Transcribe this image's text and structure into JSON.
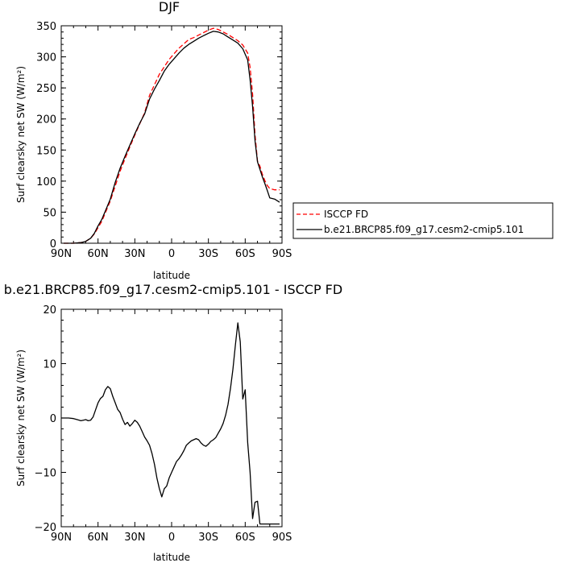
{
  "chart_data": [
    {
      "type": "line",
      "title": "DJF",
      "xlabel": "latitude",
      "ylabel": "Surf clearsky net SW (W/m²)",
      "xlim": [
        90,
        -90
      ],
      "ylim": [
        0,
        350
      ],
      "x_tick_labels": [
        "90N",
        "60N",
        "30N",
        "0",
        "30S",
        "60S",
        "90S"
      ],
      "x_tick_values": [
        90,
        60,
        30,
        0,
        -30,
        -60,
        -90
      ],
      "y_ticks": [
        0,
        50,
        100,
        150,
        200,
        250,
        300,
        350
      ],
      "legend_position": "right",
      "series": [
        {
          "name": "ISCCP FD",
          "style": "dashed",
          "color": "#ff0000",
          "x": [
            88,
            80,
            74,
            70,
            66,
            63,
            60,
            57,
            54,
            50,
            46,
            42,
            38,
            34,
            30,
            26,
            22,
            18,
            14,
            10,
            6,
            2,
            -2,
            -6,
            -10,
            -14,
            -18,
            -22,
            -26,
            -30,
            -34,
            -38,
            -42,
            -46,
            -50,
            -54,
            -58,
            -62,
            -64,
            -66,
            -68,
            -70,
            -72,
            -74,
            -76,
            -78,
            -80,
            -84,
            -88
          ],
          "y": [
            0,
            0,
            1,
            3,
            8,
            15,
            25,
            35,
            49,
            68,
            92,
            116,
            136,
            155,
            174,
            192,
            210,
            238,
            255,
            272,
            284,
            296,
            305,
            314,
            321,
            328,
            331,
            335,
            339,
            343,
            346,
            344,
            340,
            336,
            331,
            326,
            319,
            306,
            283,
            240,
            175,
            132,
            124,
            111,
            101,
            93,
            88,
            86,
            86
          ]
        },
        {
          "name": "b.e21.BRCP85.f09_g17.cesm2-cmip5.101",
          "style": "solid",
          "color": "#000000",
          "x": [
            88,
            80,
            74,
            70,
            66,
            63,
            60,
            57,
            54,
            50,
            46,
            42,
            38,
            34,
            30,
            26,
            22,
            18,
            14,
            10,
            6,
            2,
            -2,
            -6,
            -10,
            -14,
            -18,
            -22,
            -26,
            -30,
            -34,
            -38,
            -42,
            -46,
            -50,
            -54,
            -58,
            -62,
            -64,
            -66,
            -68,
            -70,
            -72,
            -74,
            -76,
            -78,
            -80,
            -84,
            -88
          ],
          "y": [
            0,
            0,
            1,
            3,
            8,
            16,
            28,
            38,
            52,
            71,
            98,
            121,
            140,
            158,
            176,
            193,
            208,
            232,
            248,
            262,
            277,
            288,
            297,
            306,
            314,
            320,
            325,
            330,
            334,
            338,
            341,
            340,
            337,
            332,
            327,
            322,
            313,
            295,
            263,
            220,
            165,
            131,
            119,
            107,
            96,
            85,
            73,
            71,
            66
          ]
        }
      ]
    },
    {
      "type": "line",
      "title": "b.e21.BRCP85.f09_g17.cesm2-cmip5.101 - ISCCP FD",
      "xlabel": "latitude",
      "ylabel": "Surf clearsky net SW (W/m²)",
      "xlim": [
        90,
        -90
      ],
      "ylim": [
        -20,
        20
      ],
      "x_tick_labels": [
        "90N",
        "60N",
        "30N",
        "0",
        "30S",
        "60S",
        "90S"
      ],
      "x_tick_values": [
        90,
        60,
        30,
        0,
        -30,
        -60,
        -90
      ],
      "y_ticks": [
        -20,
        -10,
        0,
        10,
        20
      ],
      "series": [
        {
          "name": "",
          "style": "solid",
          "color": "#000000",
          "x": [
            90,
            84,
            80,
            77,
            74,
            72,
            70,
            68,
            66,
            64,
            62,
            60,
            58,
            56,
            54,
            52,
            50,
            48,
            46,
            44,
            42,
            40,
            38,
            36,
            34,
            32,
            30,
            28,
            26,
            24,
            22,
            20,
            18,
            16,
            14,
            12,
            10,
            8,
            6,
            4,
            2,
            0,
            -2,
            -4,
            -6,
            -8,
            -10,
            -12,
            -14,
            -16,
            -18,
            -20,
            -22,
            -24,
            -26,
            -28,
            -30,
            -32,
            -34,
            -36,
            -38,
            -40,
            -42,
            -44,
            -46,
            -48,
            -50,
            -52,
            -54,
            -56,
            -58,
            -60,
            -62,
            -64,
            -66,
            -68,
            -70,
            -72,
            -74,
            -76,
            -78,
            -80,
            -82,
            -84,
            -86,
            -88
          ],
          "y": [
            0,
            0,
            -0.1,
            -0.3,
            -0.5,
            -0.4,
            -0.3,
            -0.5,
            -0.4,
            0.2,
            1.5,
            2.8,
            3.6,
            4.0,
            5.2,
            5.8,
            5.4,
            4.0,
            2.8,
            1.6,
            1.0,
            -0.2,
            -1.2,
            -0.8,
            -1.5,
            -1.0,
            -0.4,
            -0.8,
            -1.5,
            -2.5,
            -3.5,
            -4.2,
            -5.0,
            -6.5,
            -8.5,
            -11.0,
            -13.0,
            -14.5,
            -13.0,
            -12.5,
            -11.0,
            -10.0,
            -9.0,
            -8.0,
            -7.5,
            -6.8,
            -6.0,
            -5.0,
            -4.6,
            -4.2,
            -4.0,
            -3.8,
            -4.0,
            -4.6,
            -5.0,
            -5.2,
            -4.8,
            -4.3,
            -4.0,
            -3.6,
            -2.8,
            -2.0,
            -1.0,
            0.5,
            2.5,
            5.5,
            9.0,
            13.5,
            17.5,
            14.0,
            3.5,
            5.2,
            -4.5,
            -10.0,
            -18.5,
            -15.5,
            -15.3,
            -19.5,
            -19.5,
            -19.5,
            -19.5,
            -19.5,
            -19.5,
            -19.5,
            -19.5,
            -19.5
          ]
        }
      ]
    }
  ]
}
